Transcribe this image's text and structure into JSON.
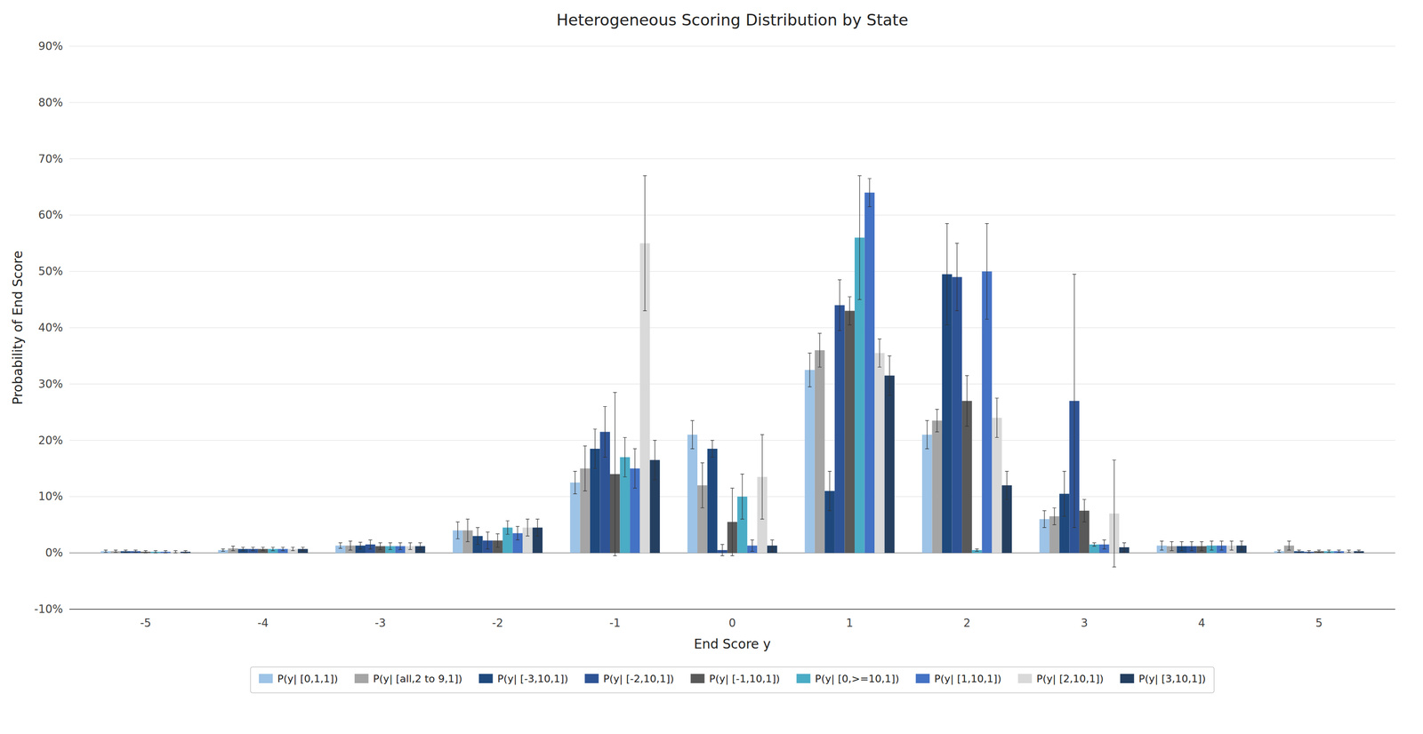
{
  "chart_data": {
    "type": "bar",
    "title": "Heterogeneous Scoring Distribution by State",
    "xlabel": "End Score y",
    "ylabel": "Probability of End Score",
    "x": [
      -5,
      -4,
      -3,
      -2,
      -1,
      0,
      1,
      2,
      3,
      4,
      5
    ],
    "xlim": [
      -5.65,
      5.65
    ],
    "xticks": [
      -5,
      -4,
      -3,
      -2,
      -1,
      0,
      1,
      2,
      3,
      4,
      5
    ],
    "ylim": [
      -0.1,
      0.9
    ],
    "yticks": [
      {
        "value": -0.1,
        "label": "-10%"
      },
      {
        "value": 0.0,
        "label": "0%"
      },
      {
        "value": 0.1,
        "label": "10%"
      },
      {
        "value": 0.2,
        "label": "20%"
      },
      {
        "value": 0.3,
        "label": "30%"
      },
      {
        "value": 0.4,
        "label": "40%"
      },
      {
        "value": 0.5,
        "label": "50%"
      },
      {
        "value": 0.6,
        "label": "60%"
      },
      {
        "value": 0.7,
        "label": "70%"
      },
      {
        "value": 0.8,
        "label": "80%"
      },
      {
        "value": 0.9,
        "label": "90%"
      }
    ],
    "grid": true,
    "legend": "bottom",
    "series": [
      {
        "name": "P(y| [0,1,1])",
        "color": "#9DC3E6",
        "values": [
          0.003,
          0.005,
          0.013,
          0.04,
          0.125,
          0.21,
          0.325,
          0.21,
          0.06,
          0.013,
          0.003
        ],
        "errors": [
          0.002,
          0.002,
          0.005,
          0.015,
          0.02,
          0.025,
          0.03,
          0.025,
          0.015,
          0.008,
          0.002
        ]
      },
      {
        "name": "P(y| [all,2 to 9,1])",
        "color": "#A5A5A5",
        "values": [
          0.003,
          0.008,
          0.013,
          0.04,
          0.15,
          0.12,
          0.36,
          0.235,
          0.065,
          0.012,
          0.013
        ],
        "errors": [
          0.002,
          0.004,
          0.008,
          0.02,
          0.04,
          0.04,
          0.03,
          0.02,
          0.015,
          0.008,
          0.008
        ]
      },
      {
        "name": "P(y| [-3,10,1])",
        "color": "#1F497D",
        "values": [
          0.003,
          0.007,
          0.013,
          0.03,
          0.185,
          0.185,
          0.11,
          0.495,
          0.105,
          0.012,
          0.003
        ],
        "errors": [
          0.002,
          0.003,
          0.006,
          0.015,
          0.035,
          0.015,
          0.035,
          0.09,
          0.04,
          0.008,
          0.002
        ]
      },
      {
        "name": "P(y| [-2,10,1])",
        "color": "#2F5496",
        "values": [
          0.003,
          0.007,
          0.015,
          0.022,
          0.215,
          0.005,
          0.44,
          0.49,
          0.27,
          0.012,
          0.002
        ],
        "errors": [
          0.002,
          0.003,
          0.008,
          0.015,
          0.045,
          0.01,
          0.045,
          0.06,
          0.225,
          0.008,
          0.002
        ]
      },
      {
        "name": "P(y| [-1,10,1])",
        "color": "#595959",
        "values": [
          0.002,
          0.007,
          0.012,
          0.022,
          0.14,
          0.055,
          0.43,
          0.27,
          0.075,
          0.012,
          0.003
        ],
        "errors": [
          0.002,
          0.003,
          0.006,
          0.012,
          0.145,
          0.06,
          0.025,
          0.045,
          0.02,
          0.008,
          0.002
        ]
      },
      {
        "name": "P(y| [0,>=10,1])",
        "color": "#4BACC6",
        "values": [
          0.002,
          0.007,
          0.012,
          0.045,
          0.17,
          0.1,
          0.56,
          0.005,
          0.015,
          0.013,
          0.003
        ],
        "errors": [
          0.002,
          0.003,
          0.006,
          0.012,
          0.035,
          0.04,
          0.11,
          0.002,
          0.003,
          0.008,
          0.002
        ]
      },
      {
        "name": "P(y| [1,10,1])",
        "color": "#4472C4",
        "values": [
          0.002,
          0.007,
          0.012,
          0.035,
          0.15,
          0.013,
          0.64,
          0.5,
          0.015,
          0.013,
          0.003
        ],
        "errors": [
          0.002,
          0.003,
          0.006,
          0.012,
          0.035,
          0.01,
          0.025,
          0.085,
          0.008,
          0.008,
          0.002
        ]
      },
      {
        "name": "P(y| [2,10,1])",
        "color": "#D9D9D9",
        "values": [
          0.002,
          0.007,
          0.012,
          0.045,
          0.55,
          0.135,
          0.355,
          0.24,
          0.07,
          0.013,
          0.003
        ],
        "errors": [
          0.002,
          0.003,
          0.006,
          0.015,
          0.12,
          0.075,
          0.025,
          0.035,
          0.095,
          0.008,
          0.002
        ]
      },
      {
        "name": "P(y| [3,10,1])",
        "color": "#243F60",
        "values": [
          0.002,
          0.007,
          0.012,
          0.045,
          0.165,
          0.013,
          0.315,
          0.12,
          0.01,
          0.013,
          0.003
        ],
        "errors": [
          0.002,
          0.003,
          0.006,
          0.015,
          0.035,
          0.01,
          0.035,
          0.025,
          0.008,
          0.008,
          0.002
        ]
      }
    ]
  }
}
